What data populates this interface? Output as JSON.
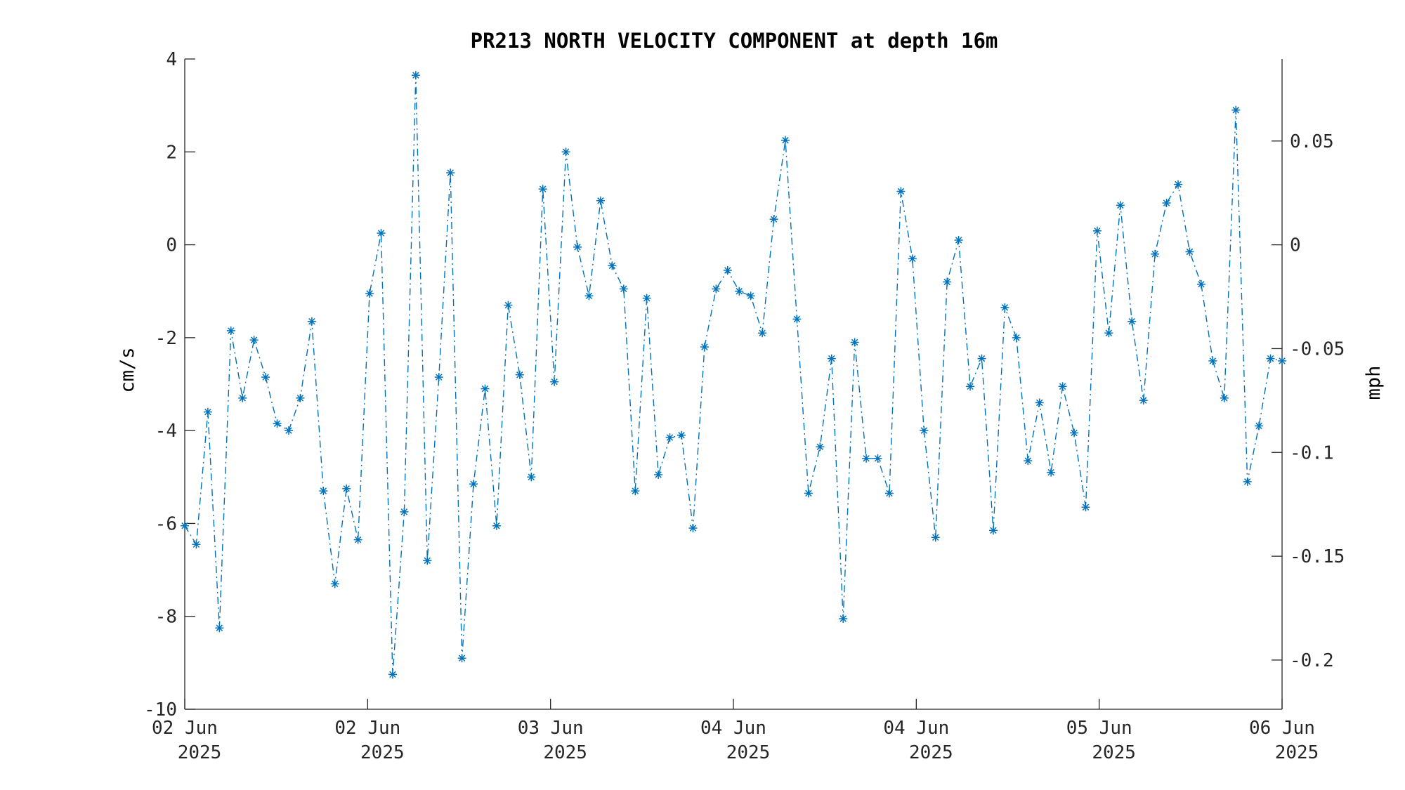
{
  "chart_data": {
    "type": "line",
    "title": "PR213 NORTH VELOCITY COMPONENT at depth 16m",
    "ylabel": "cm/s",
    "ylabel_right": "mph",
    "ylim": [
      -10,
      4
    ],
    "yticks": [
      4,
      2,
      0,
      -2,
      -4,
      -6,
      -8,
      -10
    ],
    "yticks_labels": [
      "4",
      "2",
      "0",
      "-2",
      "-4",
      "-6",
      "-8",
      "-10"
    ],
    "ylim_right": [
      -0.2237,
      0.0895
    ],
    "yticks_right": [
      0.05,
      0,
      -0.05,
      -0.1,
      -0.15,
      -0.2
    ],
    "yticks_right_labels": [
      "0.05",
      "0",
      "-0.05",
      "-0.1",
      "-0.15",
      "-0.2"
    ],
    "xticks_labels": [
      [
        "02 Jun",
        "2025"
      ],
      [
        "02 Jun",
        "2025"
      ],
      [
        "03 Jun",
        "2025"
      ],
      [
        "04 Jun",
        "2025"
      ],
      [
        "04 Jun",
        "2025"
      ],
      [
        "05 Jun",
        "2025"
      ],
      [
        "06 Jun",
        "2025"
      ]
    ],
    "line_style": "dash-dot",
    "marker": "asterisk",
    "series": [
      {
        "color": "#0072BD",
        "values": [
          -6.05,
          -6.45,
          -3.6,
          -8.25,
          -1.85,
          -3.3,
          -2.05,
          -2.85,
          -3.85,
          -4.0,
          -3.3,
          -1.65,
          -5.3,
          -7.3,
          -5.25,
          -6.35,
          -1.05,
          0.25,
          -9.25,
          -5.75,
          3.65,
          -6.8,
          -2.85,
          1.55,
          -8.9,
          -5.15,
          -3.1,
          -6.05,
          -1.3,
          -2.8,
          -5.0,
          1.2,
          -2.95,
          2.0,
          -0.05,
          -1.1,
          0.95,
          -0.45,
          -0.95,
          -5.3,
          -1.15,
          -4.95,
          -4.15,
          -4.1,
          -6.1,
          -2.2,
          -0.95,
          -0.55,
          -1.0,
          -1.1,
          -1.9,
          0.55,
          2.25,
          -1.6,
          -5.35,
          -4.35,
          -2.45,
          -8.05,
          -2.1,
          -4.6,
          -4.6,
          -5.35,
          1.15,
          -0.3,
          -4.0,
          -6.3,
          -0.8,
          0.1,
          -3.05,
          -2.45,
          -6.15,
          -1.35,
          -2.0,
          -4.65,
          -3.4,
          -4.9,
          -3.05,
          -4.05,
          -5.65,
          0.3,
          -1.9,
          0.85,
          -1.65,
          -3.35,
          -0.2,
          0.9,
          1.3,
          -0.15,
          -0.85,
          -2.5,
          -3.3,
          2.9,
          -5.1,
          -3.9,
          -2.45,
          -2.5
        ]
      }
    ]
  }
}
